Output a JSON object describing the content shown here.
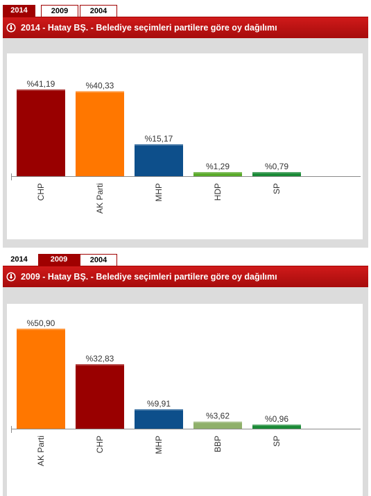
{
  "chart_data": [
    {
      "type": "bar",
      "tabs": [
        "2014",
        "2009",
        "2004"
      ],
      "active_tab": "2014",
      "title": "2014 - Hatay BŞ. - Belediye seçimleri partilere göre oy dağılımı",
      "categories": [
        "CHP",
        "AK Parti",
        "MHP",
        "HDP",
        "SP"
      ],
      "values": [
        41.19,
        40.33,
        15.17,
        1.29,
        0.79
      ],
      "value_labels": [
        "%41,19",
        "%40,33",
        "%15,17",
        "%1,29",
        "%0,79"
      ],
      "colors": [
        "#990000",
        "#ff7700",
        "#0d4f8b",
        "#5aaa2a",
        "#1a8a36"
      ],
      "ylim": [
        0,
        55
      ]
    },
    {
      "type": "bar",
      "tabs": [
        "2014",
        "2009",
        "2004"
      ],
      "active_tab": "2009",
      "title": "2009 - Hatay BŞ. - Belediye seçimleri partilere göre oy dağılımı",
      "categories": [
        "AK Parti",
        "CHP",
        "MHP",
        "BBP",
        "SP"
      ],
      "values": [
        50.9,
        32.83,
        9.91,
        3.62,
        0.96
      ],
      "value_labels": [
        "%50,90",
        "%32,83",
        "%9,91",
        "%3,62",
        "%0,96"
      ],
      "colors": [
        "#ff7700",
        "#990000",
        "#0d4f8b",
        "#8fb06a",
        "#1a8a36"
      ],
      "ylim": [
        0,
        60
      ]
    }
  ]
}
